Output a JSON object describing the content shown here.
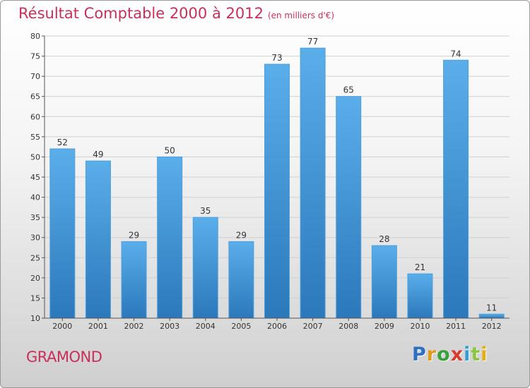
{
  "chart_data": {
    "type": "bar",
    "title": "Résultat Comptable 2000 à 2012",
    "subtitle": "(en milliers d'€)",
    "xlabel": "",
    "ylabel": "",
    "categories": [
      "2000",
      "2001",
      "2002",
      "2003",
      "2004",
      "2005",
      "2006",
      "2007",
      "2008",
      "2009",
      "2010",
      "2011",
      "2012"
    ],
    "values": [
      52,
      49,
      29,
      50,
      35,
      29,
      73,
      77,
      65,
      28,
      21,
      74,
      11
    ],
    "ylim": [
      10,
      80
    ],
    "yticks": [
      10,
      15,
      20,
      25,
      30,
      35,
      40,
      45,
      50,
      55,
      60,
      65,
      70,
      75,
      80
    ],
    "grid": true,
    "bar_color_top": "#5aaeea",
    "bar_color_bottom": "#2b78bb",
    "grid_color": "#d0d0d0"
  },
  "footer": {
    "commune": "GRAMOND",
    "logo_letters": [
      "P",
      "r",
      "o",
      "x",
      "i",
      "t",
      "i"
    ],
    "logo_colors": [
      "#2f6fc1",
      "#e59a16",
      "#3aa03a",
      "#d83a2e",
      "#2f9fd6",
      "#8ac640",
      "#e5b00f"
    ]
  }
}
